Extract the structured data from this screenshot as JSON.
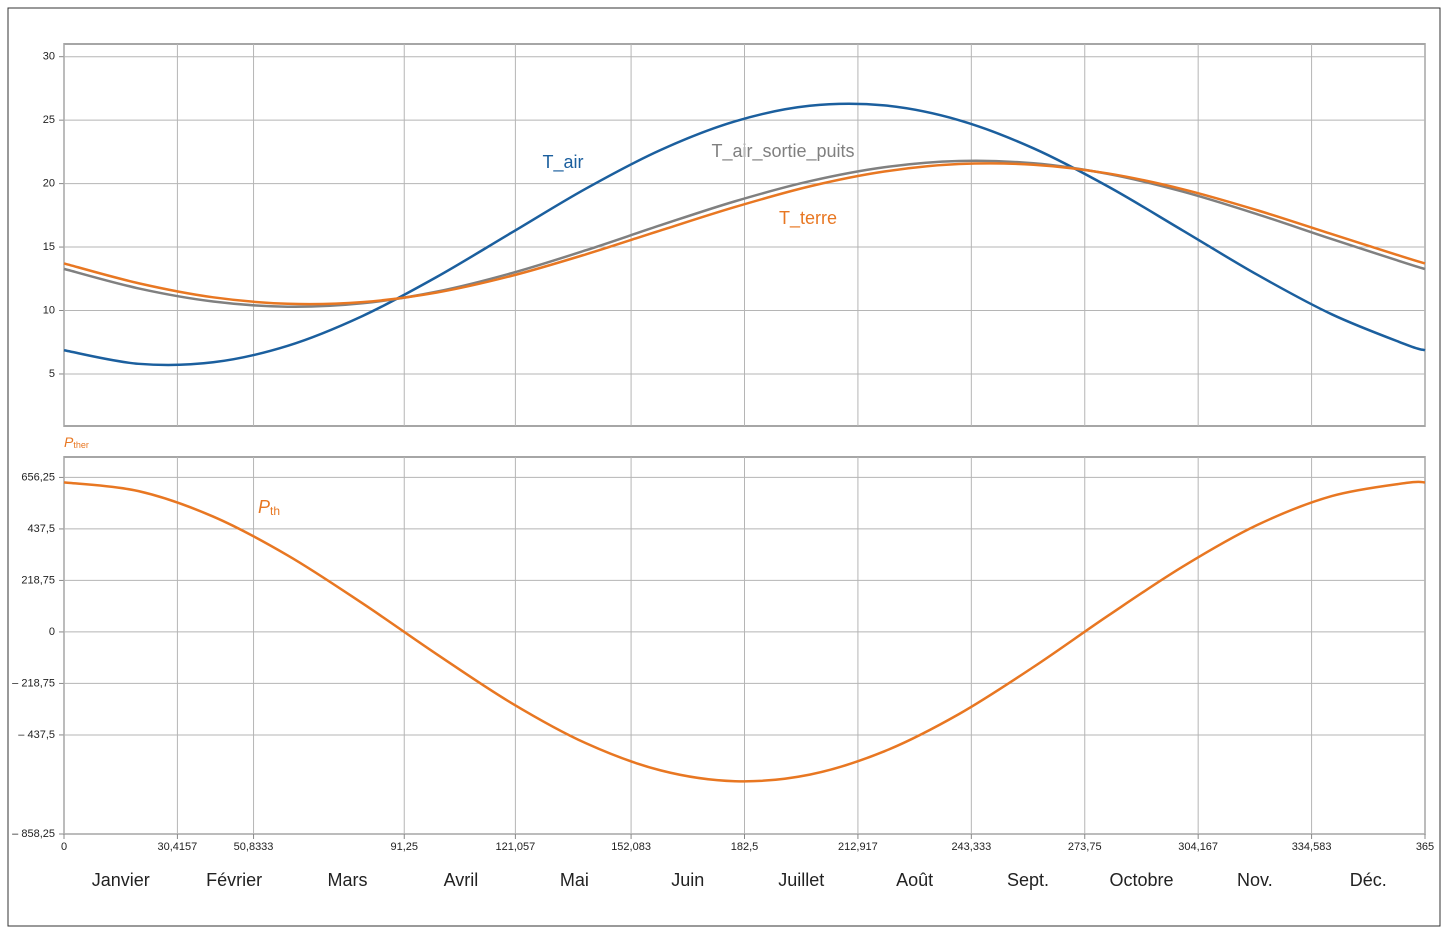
{
  "chart_data": [
    {
      "type": "line",
      "x": [
        0,
        20,
        40,
        60,
        80,
        100,
        120,
        140,
        160,
        180,
        200,
        220,
        240,
        260,
        280,
        300,
        320,
        340,
        360,
        365
      ],
      "series": [
        {
          "name": "T_air",
          "color": "#1b5f9e",
          "values": [
            6.87,
            5.8,
            5.92,
            7.22,
            9.56,
            12.65,
            16.13,
            19.61,
            22.65,
            24.91,
            26.13,
            26.16,
            25.0,
            22.78,
            19.77,
            16.31,
            12.82,
            9.7,
            7.31,
            6.87
          ]
        },
        {
          "name": "T_air_sortie_puits",
          "color": "#808080",
          "values": [
            13.28,
            11.74,
            10.71,
            10.3,
            10.57,
            11.49,
            12.94,
            14.75,
            16.72,
            18.61,
            20.19,
            21.29,
            21.78,
            21.6,
            20.76,
            19.37,
            17.59,
            15.63,
            13.72,
            13.27
          ]
        },
        {
          "name": "T_terre",
          "color": "#e87722",
          "values": [
            13.71,
            12.15,
            11.04,
            10.53,
            10.66,
            11.42,
            12.73,
            14.43,
            16.31,
            18.16,
            19.78,
            20.95,
            21.54,
            21.49,
            20.8,
            19.56,
            17.9,
            16.02,
            14.15,
            13.71
          ]
        }
      ],
      "xlim": [
        0,
        365
      ],
      "ylim": [
        0.9,
        31
      ],
      "yticks": [
        5,
        10,
        15,
        20,
        25,
        30
      ],
      "grid": true
    },
    {
      "type": "line",
      "ylabel": "P",
      "ylabel_sub": "ther",
      "ylabel_color": "#e87722",
      "x": [
        0,
        20,
        40,
        60,
        80,
        100,
        120,
        140,
        160,
        180,
        200,
        220,
        240,
        260,
        280,
        300,
        320,
        340,
        360,
        365
      ],
      "series": [
        {
          "name": "P",
          "name_sub": "th",
          "color": "#e87722",
          "values": [
            635,
            598,
            490,
            325,
            122,
            -95,
            -302,
            -473,
            -588,
            -634,
            -606,
            -507,
            -349,
            -149,
            69,
            277,
            454,
            577,
            633,
            635
          ]
        }
      ],
      "xlim": [
        0,
        365
      ],
      "xticks": [
        0,
        {
          "value": 30.4157,
          "label": "30,4157"
        },
        {
          "value": 50.8333,
          "label": "50,8333"
        },
        {
          "value": 91.25,
          "label": "91,25"
        },
        {
          "value": 121.057,
          "label": "121,057"
        },
        {
          "value": 152.083,
          "label": "152,083"
        },
        {
          "value": 182.5,
          "label": "182,5"
        },
        {
          "value": 212.917,
          "label": "212,917"
        },
        {
          "value": 243.333,
          "label": "243,333"
        },
        {
          "value": 273.75,
          "label": "273,75"
        },
        {
          "value": 304.167,
          "label": "304,167"
        },
        {
          "value": 334.583,
          "label": "334,583"
        },
        365
      ],
      "ylim": [
        -858.25,
        743
      ],
      "yticks": [
        {
          "value": 656.25,
          "label": "656,25"
        },
        {
          "value": 437.5,
          "label": "437,5"
        },
        {
          "value": 218.75,
          "label": "218,75"
        },
        0,
        {
          "value": -218.75,
          "label": "– 218,75"
        },
        {
          "value": -437.5,
          "label": "– 437,5"
        },
        {
          "value": -858.25,
          "label": "– 858,25"
        }
      ],
      "months": [
        "Janvier",
        "Février",
        "Mars",
        "Avril",
        "Mai",
        "Juin",
        "Juillet",
        "Août",
        "Sept.",
        "Octobre",
        "Nov.",
        "Déc."
      ],
      "grid": true
    }
  ]
}
